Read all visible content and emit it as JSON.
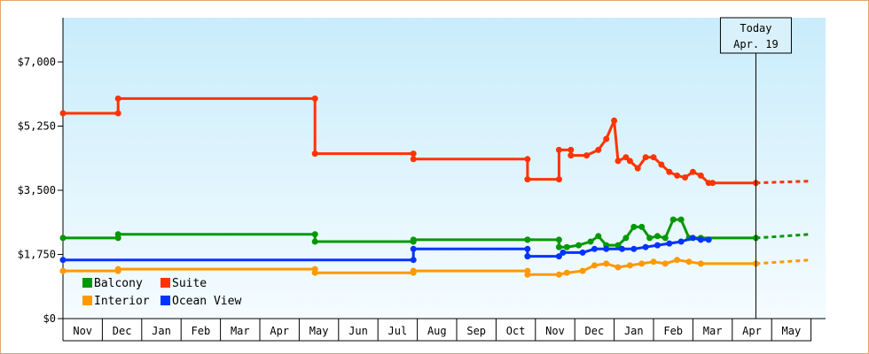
{
  "chart_data": {
    "type": "line",
    "title": "",
    "xlabel": "",
    "ylabel": "",
    "ylim": [
      0,
      7000
    ],
    "y_ticks": [
      "$0",
      "$1,750",
      "$3,500",
      "$5,250",
      "$7,000"
    ],
    "y_tick_values": [
      0,
      1750,
      3500,
      5250,
      7000
    ],
    "months": [
      "Nov",
      "Dec",
      "Jan",
      "Feb",
      "Mar",
      "Apr",
      "May",
      "Jun",
      "Jul",
      "Aug",
      "Sep",
      "Oct",
      "Nov",
      "Dec",
      "Jan",
      "Feb",
      "Mar",
      "Apr",
      "May"
    ],
    "x_unit": "month index (0 = start of Nov, year 1)",
    "today": {
      "line1": "Today",
      "line2": "Apr. 19",
      "x": 17.6
    },
    "legend": {
      "placement": "bottom-left"
    },
    "grid": true,
    "series": [
      {
        "name": "Suite",
        "color": "#ff3300",
        "points": [
          [
            0,
            5600
          ],
          [
            1.4,
            5600
          ],
          [
            1.4,
            6000
          ],
          [
            6.4,
            6000
          ],
          [
            6.4,
            4500
          ],
          [
            8.9,
            4500
          ],
          [
            8.9,
            4350
          ],
          [
            11.8,
            4350
          ],
          [
            11.8,
            3800
          ],
          [
            12.6,
            3800
          ],
          [
            12.6,
            4600
          ],
          [
            12.9,
            4600
          ],
          [
            12.9,
            4450
          ],
          [
            13.3,
            4450
          ],
          [
            13.6,
            4600
          ],
          [
            13.8,
            4900
          ],
          [
            14.0,
            5400
          ],
          [
            14.1,
            4300
          ],
          [
            14.3,
            4400
          ],
          [
            14.4,
            4300
          ],
          [
            14.6,
            4100
          ],
          [
            14.8,
            4400
          ],
          [
            15.0,
            4400
          ],
          [
            15.2,
            4200
          ],
          [
            15.4,
            4000
          ],
          [
            15.6,
            3900
          ],
          [
            15.8,
            3850
          ],
          [
            16.0,
            4000
          ],
          [
            16.2,
            3900
          ],
          [
            16.4,
            3700
          ],
          [
            16.5,
            3700
          ],
          [
            17.6,
            3700
          ]
        ],
        "projection": [
          [
            17.6,
            3700
          ],
          [
            19.0,
            3750
          ]
        ]
      },
      {
        "name": "Balcony",
        "color": "#009900",
        "points": [
          [
            0,
            2200
          ],
          [
            1.4,
            2200
          ],
          [
            1.4,
            2300
          ],
          [
            6.4,
            2300
          ],
          [
            6.4,
            2100
          ],
          [
            8.9,
            2100
          ],
          [
            8.9,
            2150
          ],
          [
            11.8,
            2150
          ],
          [
            11.8,
            2150
          ],
          [
            12.6,
            2150
          ],
          [
            12.6,
            1950
          ],
          [
            12.8,
            1950
          ],
          [
            13.1,
            2000
          ],
          [
            13.4,
            2100
          ],
          [
            13.6,
            2250
          ],
          [
            13.8,
            2000
          ],
          [
            14.1,
            2000
          ],
          [
            14.3,
            2200
          ],
          [
            14.5,
            2500
          ],
          [
            14.7,
            2500
          ],
          [
            14.9,
            2200
          ],
          [
            15.1,
            2250
          ],
          [
            15.3,
            2200
          ],
          [
            15.5,
            2700
          ],
          [
            15.7,
            2700
          ],
          [
            15.9,
            2200
          ],
          [
            16.2,
            2200
          ],
          [
            17.6,
            2200
          ]
        ],
        "projection": [
          [
            17.6,
            2200
          ],
          [
            19.0,
            2300
          ]
        ]
      },
      {
        "name": "Ocean View",
        "color": "#0033ff",
        "points": [
          [
            0,
            1600
          ],
          [
            8.9,
            1600
          ],
          [
            8.9,
            1900
          ],
          [
            11.8,
            1900
          ],
          [
            11.8,
            1700
          ],
          [
            12.6,
            1700
          ],
          [
            12.7,
            1800
          ],
          [
            13.2,
            1800
          ],
          [
            13.5,
            1900
          ],
          [
            13.8,
            1900
          ],
          [
            14.2,
            1900
          ],
          [
            14.5,
            1900
          ],
          [
            14.8,
            1950
          ],
          [
            15.1,
            2000
          ],
          [
            15.4,
            2050
          ],
          [
            15.7,
            2100
          ],
          [
            16.0,
            2200
          ],
          [
            16.2,
            2150
          ],
          [
            16.4,
            2150
          ]
        ]
      },
      {
        "name": "Interior",
        "color": "#ff9900",
        "points": [
          [
            0,
            1300
          ],
          [
            1.4,
            1300
          ],
          [
            1.4,
            1350
          ],
          [
            6.4,
            1350
          ],
          [
            6.4,
            1250
          ],
          [
            8.9,
            1250
          ],
          [
            8.9,
            1300
          ],
          [
            11.8,
            1300
          ],
          [
            11.8,
            1200
          ],
          [
            12.6,
            1200
          ],
          [
            12.8,
            1250
          ],
          [
            13.2,
            1300
          ],
          [
            13.5,
            1450
          ],
          [
            13.8,
            1500
          ],
          [
            14.1,
            1400
          ],
          [
            14.4,
            1450
          ],
          [
            14.7,
            1500
          ],
          [
            15.0,
            1550
          ],
          [
            15.3,
            1500
          ],
          [
            15.6,
            1600
          ],
          [
            15.9,
            1550
          ],
          [
            16.2,
            1500
          ],
          [
            17.6,
            1500
          ]
        ],
        "projection": [
          [
            17.6,
            1500
          ],
          [
            19.0,
            1600
          ]
        ]
      }
    ]
  }
}
